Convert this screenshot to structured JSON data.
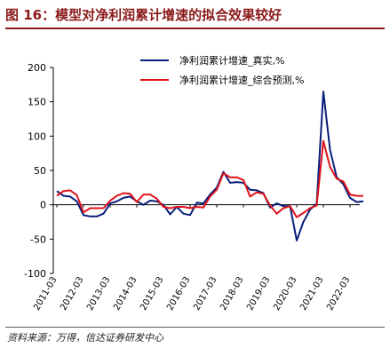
{
  "figure": {
    "title": "图 16：模型对净利润累计增速的拟合效果较好",
    "source": "资料来源：万得，信达证券研发中心"
  },
  "chart_data": {
    "type": "line",
    "ylim": [
      -100,
      200
    ],
    "yticks": [
      -100,
      -50,
      0,
      50,
      100,
      150,
      200
    ],
    "xlabels": [
      "2011-03",
      "2012-03",
      "2013-03",
      "2014-03",
      "2015-03",
      "2016-03",
      "2017-03",
      "2018-03",
      "2019-03",
      "2020-03",
      "2021-03",
      "2022-03"
    ],
    "x": [
      "2011-03",
      "2011-06",
      "2011-09",
      "2011-12",
      "2012-03",
      "2012-06",
      "2012-09",
      "2012-12",
      "2013-03",
      "2013-06",
      "2013-09",
      "2013-12",
      "2014-03",
      "2014-06",
      "2014-09",
      "2014-12",
      "2015-03",
      "2015-06",
      "2015-09",
      "2015-12",
      "2016-03",
      "2016-06",
      "2016-09",
      "2016-12",
      "2017-03",
      "2017-06",
      "2017-09",
      "2017-12",
      "2018-03",
      "2018-06",
      "2018-09",
      "2018-12",
      "2019-03",
      "2019-06",
      "2019-09",
      "2019-12",
      "2020-03",
      "2020-06",
      "2020-09",
      "2020-12",
      "2021-03",
      "2021-06",
      "2021-09",
      "2021-12",
      "2022-03",
      "2022-06",
      "2022-09"
    ],
    "series": [
      {
        "name": "净利润累计增速_真实,%",
        "color": "#0b1f7a",
        "values": [
          20,
          13,
          12,
          5,
          -15,
          -17,
          -17,
          -13,
          2,
          5,
          10,
          12,
          5,
          0,
          6,
          5,
          0,
          -14,
          -3,
          -13,
          -15,
          3,
          2,
          15,
          25,
          48,
          32,
          33,
          32,
          22,
          21,
          17,
          -4,
          2,
          -2,
          -2,
          -52,
          -25,
          -7,
          2,
          165,
          80,
          40,
          30,
          10,
          4,
          5
        ]
      },
      {
        "name": "净利润累计增速_综合预测,%",
        "color": "#e0121b",
        "values": [
          13,
          20,
          21,
          14,
          -11,
          -5,
          -5,
          -5,
          6,
          13,
          17,
          16,
          4,
          15,
          15,
          9,
          -3,
          -5,
          -3,
          -3,
          -5,
          -3,
          -4,
          12,
          22,
          46,
          40,
          40,
          36,
          12,
          18,
          16,
          -1,
          -13,
          -5,
          -2,
          -18,
          -12,
          -5,
          -1,
          93,
          55,
          38,
          34,
          15,
          13,
          13
        ]
      }
    ]
  }
}
